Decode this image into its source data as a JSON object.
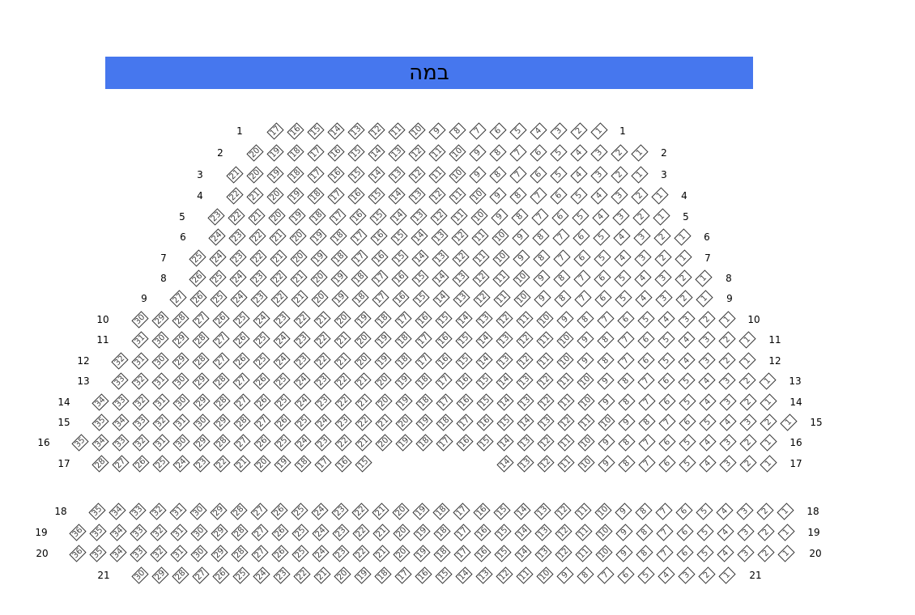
{
  "stage": {
    "label": "במה",
    "color": "#4677ee"
  },
  "rows": [
    {
      "label": "1",
      "segments": [
        [
          17,
          1
        ]
      ]
    },
    {
      "label": "2",
      "segments": [
        [
          20,
          1
        ]
      ]
    },
    {
      "label": "3",
      "segments": [
        [
          21,
          1
        ]
      ]
    },
    {
      "label": "4",
      "segments": [
        [
          22,
          1
        ]
      ]
    },
    {
      "label": "5",
      "segments": [
        [
          23,
          1
        ]
      ]
    },
    {
      "label": "6",
      "segments": [
        [
          24,
          1
        ]
      ]
    },
    {
      "label": "7",
      "segments": [
        [
          25,
          1
        ]
      ]
    },
    {
      "label": "8",
      "segments": [
        [
          26,
          1
        ]
      ]
    },
    {
      "label": "9",
      "segments": [
        [
          27,
          1
        ]
      ]
    },
    {
      "label": "10",
      "segments": [
        [
          30,
          1
        ]
      ]
    },
    {
      "label": "11",
      "segments": [
        [
          31,
          1
        ]
      ]
    },
    {
      "label": "12",
      "segments": [
        [
          32,
          1
        ]
      ]
    },
    {
      "label": "13",
      "segments": [
        [
          33,
          1
        ]
      ]
    },
    {
      "label": "14",
      "segments": [
        [
          34,
          1
        ]
      ]
    },
    {
      "label": "15",
      "segments": [
        [
          35,
          1
        ]
      ]
    },
    {
      "label": "16",
      "segments": [
        [
          35,
          1
        ]
      ]
    },
    {
      "label": "17",
      "segments": [
        [
          28,
          15
        ],
        [
          14,
          1
        ]
      ]
    },
    {
      "label": "18",
      "segments": [
        [
          35,
          1
        ]
      ]
    },
    {
      "label": "19",
      "segments": [
        [
          36,
          1
        ]
      ]
    },
    {
      "label": "20",
      "segments": [
        [
          36,
          1
        ]
      ]
    },
    {
      "label": "21",
      "segments": [
        [
          30,
          1
        ]
      ]
    }
  ]
}
